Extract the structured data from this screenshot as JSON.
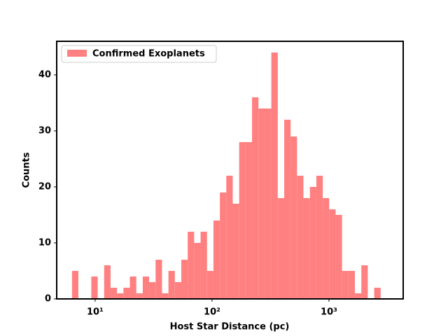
{
  "chart_data": {
    "type": "histogram",
    "xlabel": "Host Star Distance (pc)",
    "ylabel": "Counts",
    "xscale": "log",
    "bins": [
      6.34,
      7.19,
      8.17,
      9.27,
      10.52,
      11.94,
      13.55,
      15.38,
      17.46,
      19.82,
      22.49,
      25.53,
      28.97,
      32.89,
      37.33,
      42.36,
      48.08,
      54.58,
      61.94,
      70.31,
      79.8,
      90.57,
      102.8,
      116.7,
      132.4,
      150.3,
      170.6,
      193.6,
      219.8,
      249.5,
      283.1,
      321.4,
      364.8,
      414.0,
      469.9,
      533.3,
      605.3,
      687.1,
      779.8,
      885.1,
      1004.6,
      1140.2,
      1294.2,
      1468.9,
      1667.2,
      1892.3,
      2147.8,
      2437.8,
      2766.9
    ],
    "series": [
      {
        "name": "Confirmed Exoplanets",
        "color": "#ff8080",
        "values": [
          5,
          0,
          0,
          4,
          0,
          6,
          2,
          1,
          2,
          4,
          1,
          4,
          3,
          7,
          1,
          5,
          3,
          7,
          12,
          10,
          12,
          5,
          14,
          19,
          22,
          17,
          28,
          28,
          36,
          34,
          34,
          44,
          18,
          32,
          29,
          22,
          18,
          20,
          22,
          18,
          16,
          15,
          5,
          5,
          1,
          6,
          0,
          2
        ]
      }
    ],
    "xlim": [
      4.69,
      4315
    ],
    "ylim": [
      0,
      46
    ],
    "xticks": [
      {
        "value": 10,
        "label": "10¹"
      },
      {
        "value": 100,
        "label": "10²"
      },
      {
        "value": 1000,
        "label": "10³"
      }
    ],
    "yticks": [
      0,
      10,
      20,
      30,
      40
    ],
    "legend": "upper left"
  }
}
